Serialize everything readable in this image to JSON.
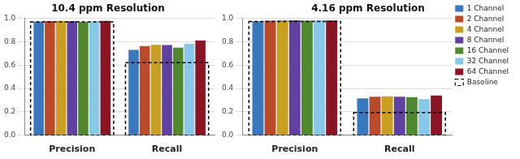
{
  "chart_data": [
    {
      "type": "bar",
      "title": "10.4 ppm Resolution",
      "categories": [
        "Precision",
        "Recall"
      ],
      "series": [
        {
          "name": "1 Channel",
          "color": "#3a78be",
          "values": [
            0.97,
            0.73
          ]
        },
        {
          "name": "2 Channel",
          "color": "#b94a2a",
          "values": [
            0.975,
            0.762
          ]
        },
        {
          "name": "4 Channel",
          "color": "#c8a020",
          "values": [
            0.977,
            0.772
          ]
        },
        {
          "name": "8 Channel",
          "color": "#6040a0",
          "values": [
            0.975,
            0.77
          ]
        },
        {
          "name": "16 Channel",
          "color": "#508830",
          "values": [
            0.969,
            0.748
          ]
        },
        {
          "name": "32 Channel",
          "color": "#88c8e8",
          "values": [
            0.972,
            0.782
          ]
        },
        {
          "name": "64 Channel",
          "color": "#8b1525",
          "values": [
            0.976,
            0.808
          ]
        },
        {
          "name": "Baseline",
          "type": "baseline",
          "line_style": "dashed",
          "color": "#000000",
          "values": [
            0.968,
            0.62
          ]
        }
      ],
      "ylim": [
        0,
        1.0
      ],
      "yticks": [
        {
          "value": 0,
          "label": "0.0"
        },
        0.2,
        0.4,
        0.6,
        0.8,
        {
          "value": 1.0,
          "label": "1.0"
        }
      ],
      "grid": true
    },
    {
      "type": "bar",
      "title": "4.16 ppm Resolution",
      "categories": [
        "Precision",
        "Recall"
      ],
      "series": [
        {
          "name": "1 Channel",
          "color": "#3a78be",
          "values": [
            0.974,
            0.315
          ]
        },
        {
          "name": "2 Channel",
          "color": "#b94a2a",
          "values": [
            0.978,
            0.33
          ]
        },
        {
          "name": "4 Channel",
          "color": "#c8a020",
          "values": [
            0.982,
            0.332
          ]
        },
        {
          "name": "8 Channel",
          "color": "#6040a0",
          "values": [
            0.982,
            0.33
          ]
        },
        {
          "name": "16 Channel",
          "color": "#508830",
          "values": [
            0.978,
            0.325
          ]
        },
        {
          "name": "32 Channel",
          "color": "#88c8e8",
          "values": [
            0.984,
            0.308
          ]
        },
        {
          "name": "64 Channel",
          "color": "#8b1525",
          "values": [
            0.98,
            0.34
          ]
        },
        {
          "name": "Baseline",
          "type": "baseline",
          "line_style": "dashed",
          "color": "#000000",
          "values": [
            0.972,
            0.195
          ]
        }
      ],
      "ylim": [
        0,
        1.0
      ],
      "yticks": [
        {
          "value": 0,
          "label": "0.0"
        },
        0.2,
        0.4,
        0.6,
        0.8,
        {
          "value": 1.0,
          "label": "1.0"
        }
      ],
      "grid": true,
      "legend": "upper right"
    }
  ]
}
